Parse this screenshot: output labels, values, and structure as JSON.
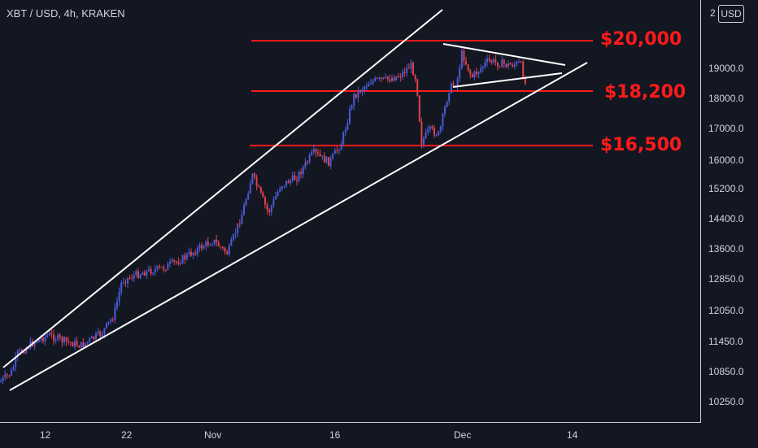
{
  "header": {
    "title": "XBT / USD, 4h, KRAKEN"
  },
  "price_axis": {
    "currency": "USD",
    "top_clip": "2"
  },
  "chart_data": {
    "type": "candlestick",
    "title": "XBT / USD, 4h, KRAKEN",
    "y_ticks": [
      "19000.0",
      "18000.0",
      "17000.0",
      "16000.0",
      "15200.0",
      "14400.0",
      "13600.0",
      "12850.0",
      "12050.0",
      "11450.0",
      "10850.0",
      "10250.0"
    ],
    "x_ticks": [
      "12",
      "22",
      "Nov",
      "16",
      "Dec",
      "14"
    ],
    "levels": [
      {
        "label": "$20,000",
        "value": 20000
      },
      {
        "label": "$18,200",
        "value": 18200
      },
      {
        "label": "$16,500",
        "value": 16500
      }
    ],
    "grid": false,
    "colors": {
      "up": "#4a5bd8",
      "down": "#e0414b",
      "level": "#ff1a1a",
      "trend": "#ffffff",
      "background": "#131722",
      "text": "#d1d4dc"
    }
  }
}
